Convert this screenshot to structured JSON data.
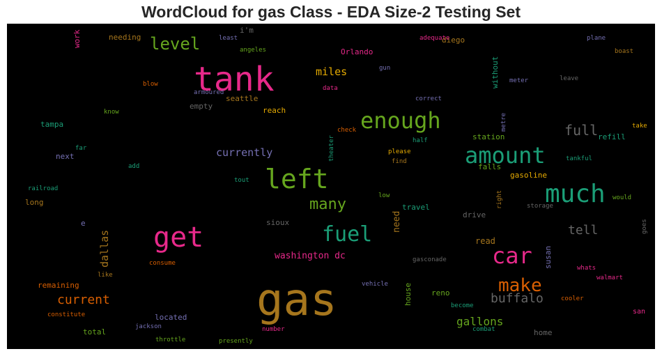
{
  "chart_data": {
    "type": "wordcloud",
    "title": "WordCloud for gas Class - EDA Size-2 Testing Set",
    "background": "#000000",
    "words": [
      {
        "text": "gas",
        "color": "#a6761d"
      },
      {
        "text": "tank",
        "color": "#e7298a"
      },
      {
        "text": "left",
        "color": "#66a61e"
      },
      {
        "text": "much",
        "color": "#1b9e77"
      },
      {
        "text": "get",
        "color": "#e7298a"
      },
      {
        "text": "enough",
        "color": "#66a61e"
      },
      {
        "text": "amount",
        "color": "#1b9e77"
      },
      {
        "text": "car",
        "color": "#e7298a"
      },
      {
        "text": "fuel",
        "color": "#1b9e77"
      },
      {
        "text": "make",
        "color": "#d95f02"
      },
      {
        "text": "level",
        "color": "#66a61e"
      },
      {
        "text": "full",
        "color": "#666666"
      },
      {
        "text": "many",
        "color": "#66a61e"
      },
      {
        "text": "buffalo",
        "color": "#666666"
      },
      {
        "text": "current",
        "color": "#d95f02"
      },
      {
        "text": "tell",
        "color": "#666666"
      },
      {
        "text": "gallons",
        "color": "#66a61e"
      },
      {
        "text": "miles",
        "color": "#e6ab02"
      },
      {
        "text": "currently",
        "color": "#7570b3"
      },
      {
        "text": "washington dc",
        "color": "#e7298a"
      },
      {
        "text": "dallas",
        "color": "#a6761d"
      },
      {
        "text": "need",
        "color": "#a6761d"
      },
      {
        "text": "read",
        "color": "#a6761d"
      },
      {
        "text": "station",
        "color": "#66a61e"
      },
      {
        "text": "refill",
        "color": "#1b9e77"
      },
      {
        "text": "falls",
        "color": "#66a61e"
      },
      {
        "text": "gasoline",
        "color": "#e6ab02"
      },
      {
        "text": "seattle",
        "color": "#a6761d"
      },
      {
        "text": "reach",
        "color": "#e6ab02"
      },
      {
        "text": "empty",
        "color": "#666666"
      },
      {
        "text": "travel",
        "color": "#1b9e77"
      },
      {
        "text": "drive",
        "color": "#666666"
      },
      {
        "text": "sioux",
        "color": "#666666"
      },
      {
        "text": "located",
        "color": "#7570b3"
      },
      {
        "text": "remaining",
        "color": "#d95f02"
      },
      {
        "text": "total",
        "color": "#66a61e"
      },
      {
        "text": "home",
        "color": "#666666"
      },
      {
        "text": "reno",
        "color": "#66a61e"
      },
      {
        "text": "house",
        "color": "#66a61e"
      },
      {
        "text": "susan",
        "color": "#7570b3"
      },
      {
        "text": "tampa",
        "color": "#1b9e77"
      },
      {
        "text": "next",
        "color": "#7570b3"
      },
      {
        "text": "long",
        "color": "#a6761d"
      },
      {
        "text": "Orlando",
        "color": "#e7298a"
      },
      {
        "text": "diego",
        "color": "#a6761d"
      },
      {
        "text": "without",
        "color": "#1b9e77"
      },
      {
        "text": "i'm",
        "color": "#666666"
      },
      {
        "text": "needing",
        "color": "#a6761d"
      },
      {
        "text": "work",
        "color": "#e7298a"
      },
      {
        "text": "san",
        "color": "#e7298a"
      },
      {
        "text": "e",
        "color": "#7570b3"
      },
      {
        "text": "storage",
        "color": "#666666"
      },
      {
        "text": "tankful",
        "color": "#1b9e77"
      },
      {
        "text": "metre",
        "color": "#7570b3"
      },
      {
        "text": "right",
        "color": "#a6761d"
      },
      {
        "text": "would",
        "color": "#66a61e"
      },
      {
        "text": "take",
        "color": "#e6ab02"
      },
      {
        "text": "please",
        "color": "#e6ab02"
      },
      {
        "text": "find",
        "color": "#a6761d"
      },
      {
        "text": "half",
        "color": "#1b9e77"
      },
      {
        "text": "check",
        "color": "#d95f02"
      },
      {
        "text": "theater",
        "color": "#1b9e77"
      },
      {
        "text": "low",
        "color": "#66a61e"
      },
      {
        "text": "tout",
        "color": "#1b9e77"
      },
      {
        "text": "add",
        "color": "#1b9e77"
      },
      {
        "text": "far",
        "color": "#1b9e77"
      },
      {
        "text": "railroad",
        "color": "#1b9e77"
      },
      {
        "text": "know",
        "color": "#66a61e"
      },
      {
        "text": "blow",
        "color": "#d95f02"
      },
      {
        "text": "armoured",
        "color": "#7570b3"
      },
      {
        "text": "correct",
        "color": "#7570b3"
      },
      {
        "text": "data",
        "color": "#e7298a"
      },
      {
        "text": "gun",
        "color": "#7570b3"
      },
      {
        "text": "meter",
        "color": "#7570b3"
      },
      {
        "text": "leave",
        "color": "#666666"
      },
      {
        "text": "boast",
        "color": "#a6761d"
      },
      {
        "text": "plane",
        "color": "#7570b3"
      },
      {
        "text": "adequate",
        "color": "#e7298a"
      },
      {
        "text": "least",
        "color": "#7570b3"
      },
      {
        "text": "angeles",
        "color": "#66a61e"
      },
      {
        "text": "goes",
        "color": "#666666"
      },
      {
        "text": "whats",
        "color": "#e7298a"
      },
      {
        "text": "walmart",
        "color": "#e7298a"
      },
      {
        "text": "cooler",
        "color": "#d95f02"
      },
      {
        "text": "become",
        "color": "#1b9e77"
      },
      {
        "text": "combat",
        "color": "#1b9e77"
      },
      {
        "text": "vehicle",
        "color": "#7570b3"
      },
      {
        "text": "gasconade",
        "color": "#666666"
      },
      {
        "text": "number",
        "color": "#e7298a"
      },
      {
        "text": "presently",
        "color": "#66a61e"
      },
      {
        "text": "throttle",
        "color": "#66a61e"
      },
      {
        "text": "jackson",
        "color": "#7570b3"
      },
      {
        "text": "constitute",
        "color": "#d95f02"
      },
      {
        "text": "like",
        "color": "#a6761d"
      },
      {
        "text": "consume",
        "color": "#d95f02"
      }
    ]
  }
}
